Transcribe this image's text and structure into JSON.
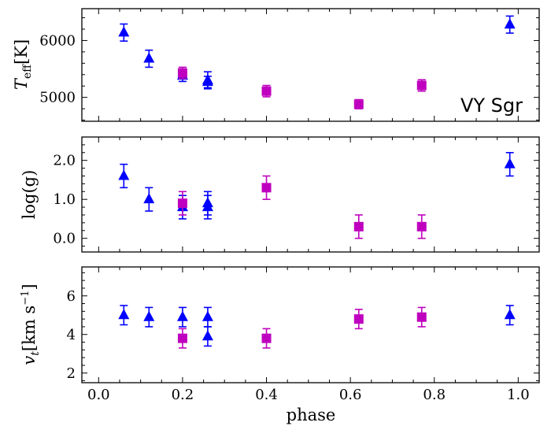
{
  "chart_data": {
    "type": "scatter",
    "shared_x": {
      "label": "phase",
      "range": [
        -0.04,
        1.05
      ],
      "ticks": [
        0.0,
        0.2,
        0.4,
        0.6,
        0.8,
        1.0
      ],
      "tick_labels": [
        "0.0",
        "0.2",
        "0.4",
        "0.6",
        "0.8",
        "1.0"
      ]
    },
    "series_styles": [
      {
        "name": "triangles",
        "marker": "triangle",
        "color": "#0000ff"
      },
      {
        "name": "squares",
        "marker": "square",
        "color": "#bf00bf"
      }
    ],
    "panels": [
      {
        "ylabel_main": "T",
        "ylabel_sub": "eff",
        "ylabel_unit": "[K]",
        "yrange": [
          4580,
          6560
        ],
        "yticks": [
          5000,
          6000
        ],
        "ytick_labels": [
          "5000",
          "6000"
        ],
        "annotation": "VY Sgr",
        "series": [
          {
            "name": "triangles",
            "points": [
              {
                "x": 0.06,
                "y": 6140,
                "err": 150
              },
              {
                "x": 0.12,
                "y": 5680,
                "err": 150
              },
              {
                "x": 0.2,
                "y": 5380,
                "err": 100
              },
              {
                "x": 0.26,
                "y": 5270,
                "err": 100
              },
              {
                "x": 0.26,
                "y": 5300,
                "err": 150
              },
              {
                "x": 0.98,
                "y": 6280,
                "err": 150
              }
            ]
          },
          {
            "name": "squares",
            "points": [
              {
                "x": 0.2,
                "y": 5430,
                "err": 100
              },
              {
                "x": 0.4,
                "y": 5110,
                "err": 100
              },
              {
                "x": 0.62,
                "y": 4880,
                "err": 80
              },
              {
                "x": 0.77,
                "y": 5210,
                "err": 100
              }
            ]
          }
        ]
      },
      {
        "ylabel_main": "log(g)",
        "yrange": [
          -0.35,
          2.6
        ],
        "yticks": [
          0.0,
          1.0,
          2.0
        ],
        "ytick_labels": [
          "0.0",
          "1.0",
          "2.0"
        ],
        "series": [
          {
            "name": "triangles",
            "points": [
              {
                "x": 0.06,
                "y": 1.6,
                "err": 0.3
              },
              {
                "x": 0.12,
                "y": 1.0,
                "err": 0.3
              },
              {
                "x": 0.2,
                "y": 0.8,
                "err": 0.3
              },
              {
                "x": 0.26,
                "y": 0.8,
                "err": 0.3
              },
              {
                "x": 0.26,
                "y": 0.9,
                "err": 0.3
              },
              {
                "x": 0.98,
                "y": 1.9,
                "err": 0.3
              }
            ]
          },
          {
            "name": "squares",
            "points": [
              {
                "x": 0.2,
                "y": 0.9,
                "err": 0.3
              },
              {
                "x": 0.4,
                "y": 1.3,
                "err": 0.3
              },
              {
                "x": 0.62,
                "y": 0.3,
                "err": 0.3
              },
              {
                "x": 0.77,
                "y": 0.3,
                "err": 0.3
              }
            ]
          }
        ]
      },
      {
        "ylabel_main": "v",
        "ylabel_sub": "t",
        "ylabel_unit": "[km s",
        "ylabel_sup": "−1",
        "ylabel_close": "]",
        "yrange": [
          1.5,
          7.5
        ],
        "yticks": [
          2,
          4,
          6
        ],
        "ytick_labels": [
          "2",
          "4",
          "6"
        ],
        "series": [
          {
            "name": "triangles",
            "points": [
              {
                "x": 0.06,
                "y": 5.0,
                "err": 0.5
              },
              {
                "x": 0.12,
                "y": 4.9,
                "err": 0.5
              },
              {
                "x": 0.2,
                "y": 4.9,
                "err": 0.5
              },
              {
                "x": 0.26,
                "y": 4.9,
                "err": 0.5
              },
              {
                "x": 0.26,
                "y": 3.9,
                "err": 0.5
              },
              {
                "x": 0.98,
                "y": 5.0,
                "err": 0.5
              }
            ]
          },
          {
            "name": "squares",
            "points": [
              {
                "x": 0.2,
                "y": 3.8,
                "err": 0.5
              },
              {
                "x": 0.4,
                "y": 3.8,
                "err": 0.5
              },
              {
                "x": 0.62,
                "y": 4.8,
                "err": 0.5
              },
              {
                "x": 0.77,
                "y": 4.9,
                "err": 0.5
              }
            ]
          }
        ]
      }
    ]
  }
}
